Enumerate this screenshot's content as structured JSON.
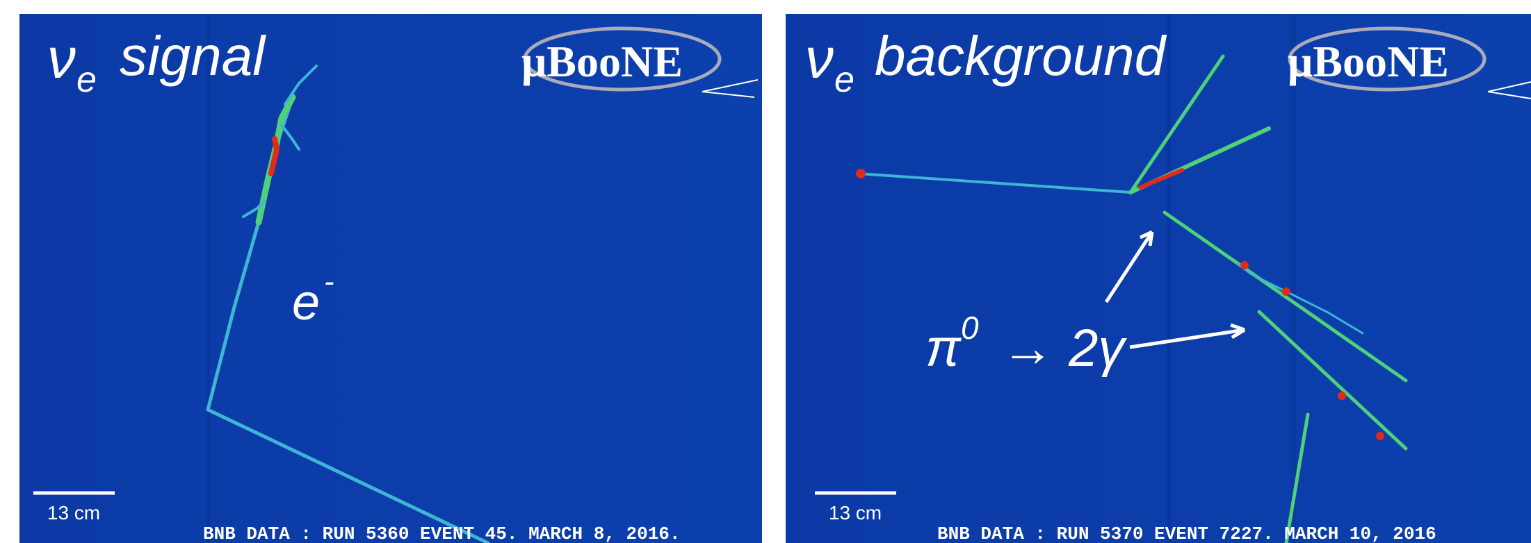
{
  "panels": [
    {
      "title_symbol": "ν",
      "title_subscript": "e",
      "title": "signal",
      "logo": "μBooNE",
      "label": "e",
      "label_superscript": "-",
      "scale": "13 cm",
      "footer": "BNB DATA : RUN 5360 EVENT 45. MARCH 8, 2016."
    },
    {
      "title_symbol": "ν",
      "title_subscript": "e",
      "title": "background",
      "logo": "μBooNE",
      "label": "π",
      "label_superscript": "0",
      "label_rest": "→ 2γ",
      "scale": "13 cm",
      "footer": "BNB DATA : RUN 5370 EVENT 7227. MARCH 10, 2016"
    }
  ]
}
